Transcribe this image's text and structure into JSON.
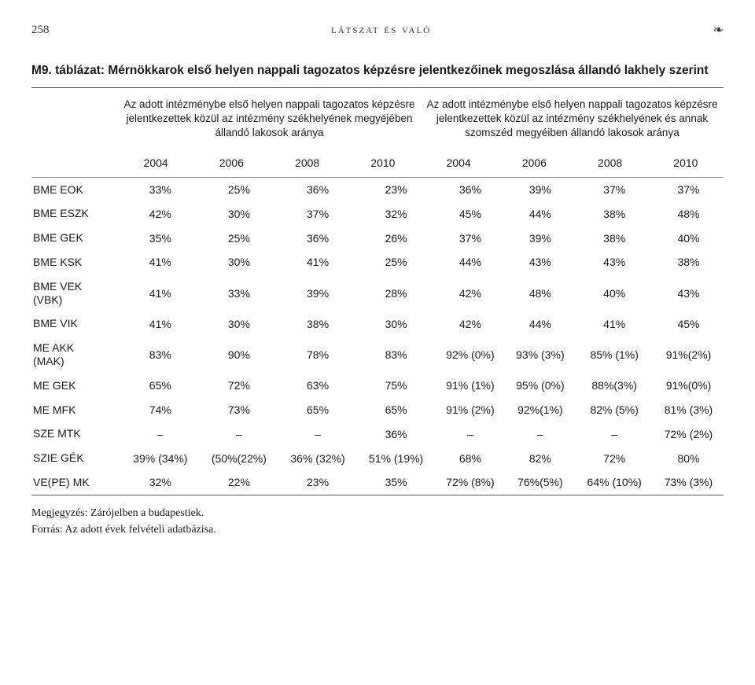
{
  "header": {
    "page_number": "258",
    "running_title": "látszat és való",
    "ornament": "❧"
  },
  "table": {
    "title_prefix": "M9. táblázat: ",
    "title_rest": "Mérnökkarok első helyen nappali tagozatos képzésre jelentkezőinek megoszlása állandó lakhely szerint",
    "subhead_left": "Az adott intézménybe első helyen nappali tagozatos képzésre jelentkezettek közül az intézmény székhelyének megyéjében állandó lakosok aránya",
    "subhead_right": "Az adott intézménybe első helyen nappali tagozatos képzésre jelentkezettek közül az intézmény székhelyének és annak szomszéd megyéiben állandó lakosok aránya",
    "years": [
      "2004",
      "2006",
      "2008",
      "2010",
      "2004",
      "2006",
      "2008",
      "2010"
    ],
    "rows": [
      {
        "label": "BME EOK",
        "v": [
          "33%",
          "25%",
          "36%",
          "23%",
          "36%",
          "39%",
          "37%",
          "37%"
        ]
      },
      {
        "label": "BME ESZK",
        "v": [
          "42%",
          "30%",
          "37%",
          "32%",
          "45%",
          "44%",
          "38%",
          "48%"
        ]
      },
      {
        "label": "BME GEK",
        "v": [
          "35%",
          "25%",
          "36%",
          "26%",
          "37%",
          "39%",
          "38%",
          "40%"
        ]
      },
      {
        "label": "BME KSK",
        "v": [
          "41%",
          "30%",
          "41%",
          "25%",
          "44%",
          "43%",
          "43%",
          "38%"
        ]
      },
      {
        "label": "BME VEK\n(VBK)",
        "v": [
          "41%",
          "33%",
          "39%",
          "28%",
          "42%",
          "48%",
          "40%",
          "43%"
        ]
      },
      {
        "label": "BME VIK",
        "v": [
          "41%",
          "30%",
          "38%",
          "30%",
          "42%",
          "44%",
          "41%",
          "45%"
        ]
      },
      {
        "label": "ME AKK\n(MAK)",
        "v": [
          "83%",
          "90%",
          "78%",
          "83%",
          "92% (0%)",
          "93% (3%)",
          "85% (1%)",
          "91%(2%)"
        ]
      },
      {
        "label": "ME GEK",
        "v": [
          "65%",
          "72%",
          "63%",
          "75%",
          "91% (1%)",
          "95% (0%)",
          "88%(3%)",
          "91%(0%)"
        ]
      },
      {
        "label": "ME MFK",
        "v": [
          "74%",
          "73%",
          "65%",
          "65%",
          "91% (2%)",
          "92%(1%)",
          "82% (5%)",
          "81% (3%)"
        ]
      },
      {
        "label": "SZE MTK",
        "v": [
          "–",
          "–",
          "–",
          "36%",
          "–",
          "–",
          "–",
          "72% (2%)"
        ]
      },
      {
        "label": "SZIE GÉK",
        "v": [
          "39% (34%)",
          "(50%(22%)",
          "36% (32%)",
          "51% (19%)",
          "68%",
          "82%",
          "72%",
          "80%"
        ]
      },
      {
        "label": "VE(PE) MK",
        "v": [
          "32%",
          "22%",
          "23%",
          "35%",
          "72% (8%)",
          "76%(5%)",
          "64% (10%)",
          "73% (3%)"
        ]
      }
    ]
  },
  "notes": {
    "line1": "Megjegyzés: Zárójelben a budapestiek.",
    "line2": "Forrás: Az adott évek felvételi adatbázisa."
  }
}
